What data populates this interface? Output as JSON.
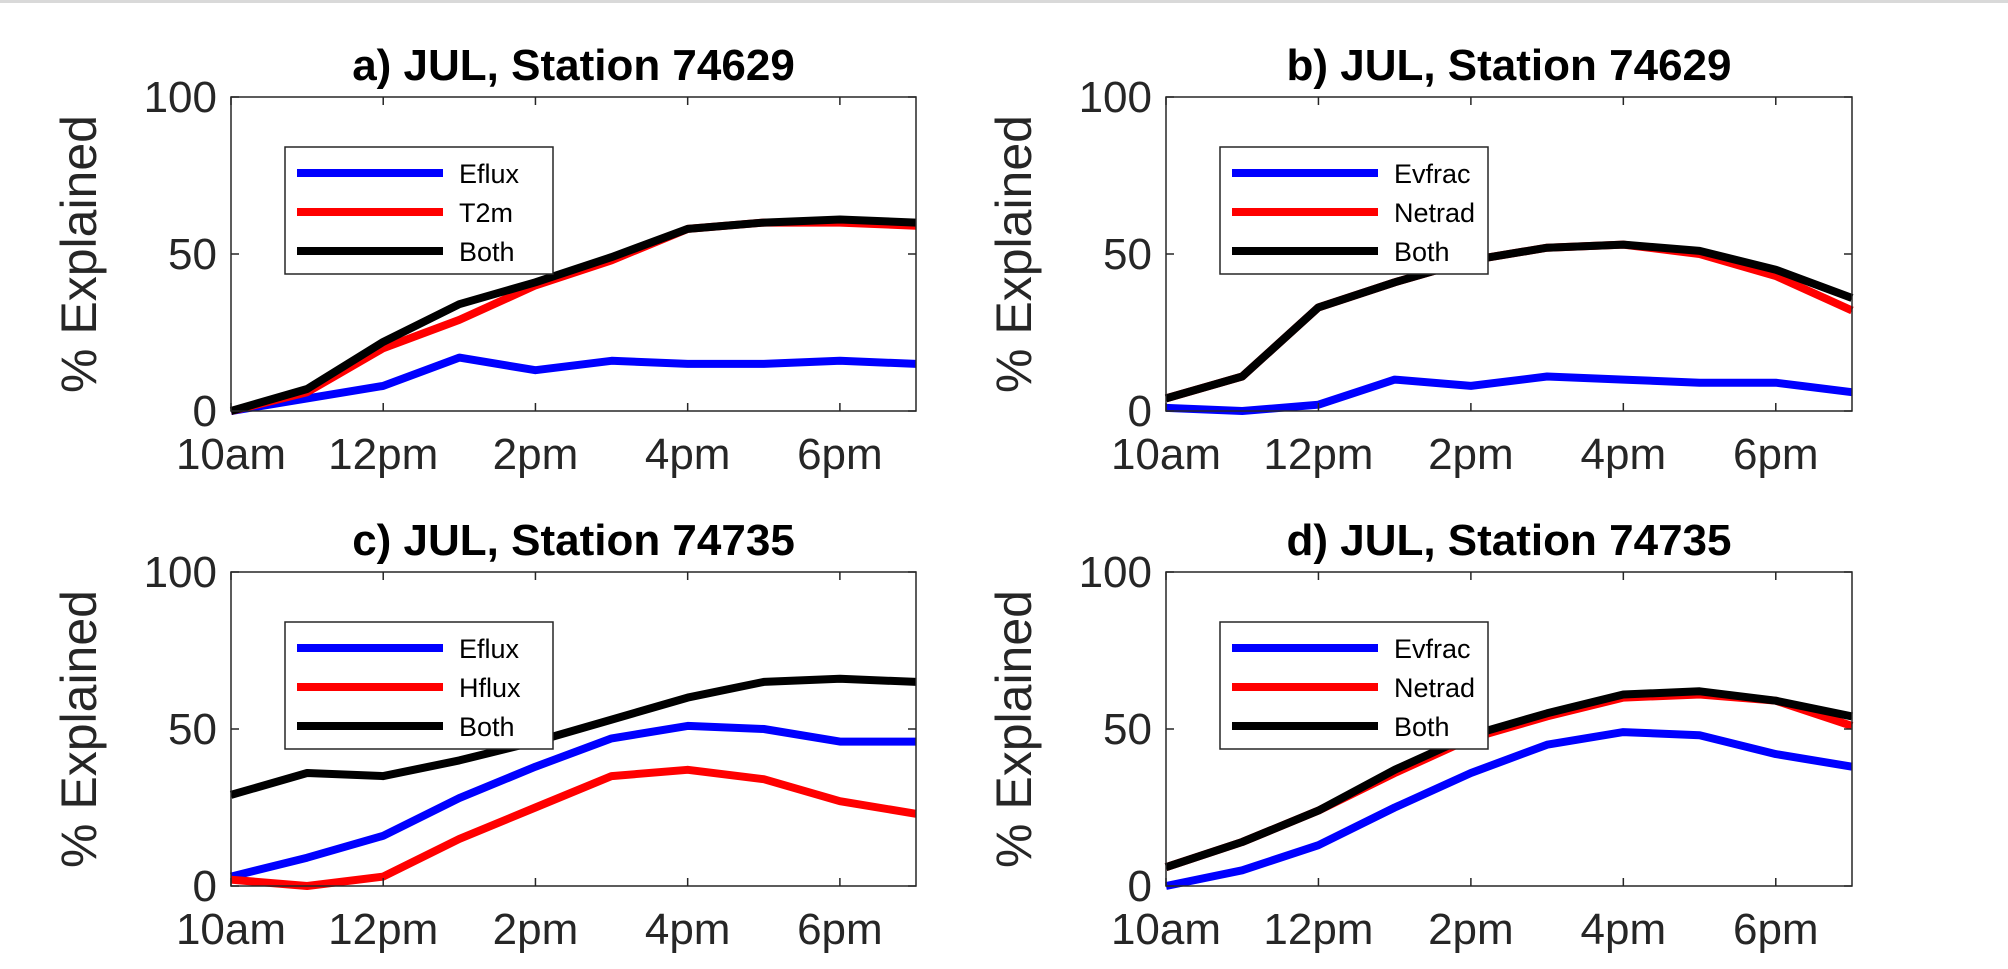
{
  "chart_data": [
    {
      "type": "line",
      "title": "a) JUL, Station 74629",
      "ylabel": "% Explained",
      "xlabel": "",
      "ylim": [
        0,
        100
      ],
      "yticks": [
        "0",
        "50",
        "100"
      ],
      "xticks": [
        "10am",
        "12pm",
        "2pm",
        "4pm",
        "6pm"
      ],
      "xtick_hours": [
        10,
        12,
        14,
        16,
        18
      ],
      "x": [
        10,
        11,
        12,
        13,
        14,
        15,
        16,
        17,
        18,
        19
      ],
      "legend_position": "upper-left",
      "series": [
        {
          "name": "Eflux",
          "color": "#0000ff",
          "values": [
            0,
            4,
            8,
            17,
            13,
            16,
            15,
            15,
            16,
            15
          ]
        },
        {
          "name": "T2m",
          "color": "#ff0000",
          "values": [
            0,
            6,
            20,
            29,
            40,
            48,
            58,
            60,
            60,
            59
          ]
        },
        {
          "name": "Both",
          "color": "#000000",
          "values": [
            0,
            7,
            22,
            34,
            41,
            49,
            58,
            60,
            61,
            60
          ]
        }
      ]
    },
    {
      "type": "line",
      "title": "b) JUL, Station 74629",
      "ylabel": "% Explained",
      "xlabel": "",
      "ylim": [
        0,
        100
      ],
      "yticks": [
        "0",
        "50",
        "100"
      ],
      "xticks": [
        "10am",
        "12pm",
        "2pm",
        "4pm",
        "6pm"
      ],
      "xtick_hours": [
        10,
        12,
        14,
        16,
        18
      ],
      "x": [
        10,
        11,
        12,
        13,
        14,
        15,
        16,
        17,
        18,
        19
      ],
      "legend_position": "upper-left",
      "series": [
        {
          "name": "Evfrac",
          "color": "#0000ff",
          "values": [
            1,
            0,
            2,
            10,
            8,
            11,
            10,
            9,
            9,
            6
          ]
        },
        {
          "name": "Netrad",
          "color": "#ff0000",
          "values": [
            4,
            11,
            33,
            41,
            48,
            52,
            53,
            50,
            43,
            32
          ]
        },
        {
          "name": "Both",
          "color": "#000000",
          "values": [
            4,
            11,
            33,
            41,
            48,
            52,
            53,
            51,
            45,
            36
          ]
        }
      ]
    },
    {
      "type": "line",
      "title": "c) JUL, Station 74735",
      "ylabel": "% Explained",
      "xlabel": "",
      "ylim": [
        0,
        100
      ],
      "yticks": [
        "0",
        "50",
        "100"
      ],
      "xticks": [
        "10am",
        "12pm",
        "2pm",
        "4pm",
        "6pm"
      ],
      "xtick_hours": [
        10,
        12,
        14,
        16,
        18
      ],
      "x": [
        10,
        11,
        12,
        13,
        14,
        15,
        16,
        17,
        18,
        19
      ],
      "legend_position": "upper-left",
      "series": [
        {
          "name": "Eflux",
          "color": "#0000ff",
          "values": [
            3,
            9,
            16,
            28,
            38,
            47,
            51,
            50,
            46,
            46
          ]
        },
        {
          "name": "Hflux",
          "color": "#ff0000",
          "values": [
            2,
            0,
            3,
            15,
            25,
            35,
            37,
            34,
            27,
            23
          ]
        },
        {
          "name": "Both",
          "color": "#000000",
          "values": [
            29,
            36,
            35,
            40,
            46,
            53,
            60,
            65,
            66,
            65
          ]
        }
      ]
    },
    {
      "type": "line",
      "title": "d) JUL, Station 74735",
      "ylabel": "% Explained",
      "xlabel": "",
      "ylim": [
        0,
        100
      ],
      "yticks": [
        "0",
        "50",
        "100"
      ],
      "xticks": [
        "10am",
        "12pm",
        "2pm",
        "4pm",
        "6pm"
      ],
      "xtick_hours": [
        10,
        12,
        14,
        16,
        18
      ],
      "x": [
        10,
        11,
        12,
        13,
        14,
        15,
        16,
        17,
        18,
        19
      ],
      "legend_position": "upper-left",
      "series": [
        {
          "name": "Evfrac",
          "color": "#0000ff",
          "values": [
            0,
            5,
            13,
            25,
            36,
            45,
            49,
            48,
            42,
            38
          ]
        },
        {
          "name": "Netrad",
          "color": "#ff0000",
          "values": [
            6,
            14,
            24,
            36,
            47,
            54,
            60,
            61,
            59,
            51
          ]
        },
        {
          "name": "Both",
          "color": "#000000",
          "values": [
            6,
            14,
            24,
            37,
            48,
            55,
            61,
            62,
            59,
            54
          ]
        }
      ]
    }
  ]
}
